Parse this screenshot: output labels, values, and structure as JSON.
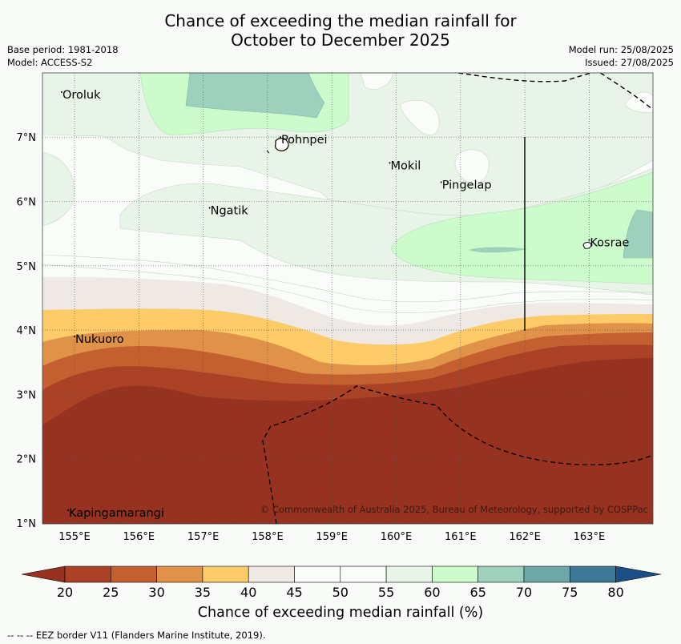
{
  "header": {
    "title_line1": "Chance of exceeding the median rainfall for",
    "title_line2": "October to December 2025",
    "base_period": "Base period: 1981-2018",
    "model": "Model: ACCESS-S2",
    "model_run": "Model run: 25/08/2025",
    "issued": "Issued: 27/08/2025"
  },
  "map": {
    "lon_ticks": [
      "155°E",
      "156°E",
      "157°E",
      "158°E",
      "159°E",
      "160°E",
      "161°E",
      "162°E",
      "163°E"
    ],
    "lat_ticks": [
      "1°N",
      "2°N",
      "3°N",
      "4°N",
      "5°N",
      "6°N",
      "7°N"
    ],
    "places": [
      {
        "name": "Oroluk",
        "lon": 154.8,
        "lat": 7.6
      },
      {
        "name": "Pohnpei",
        "lon": 158.2,
        "lat": 6.9
      },
      {
        "name": "Mokil",
        "lon": 159.9,
        "lat": 6.5
      },
      {
        "name": "Pingelap",
        "lon": 160.7,
        "lat": 6.2
      },
      {
        "name": "Ngatik",
        "lon": 157.1,
        "lat": 5.8
      },
      {
        "name": "Kosrae",
        "lon": 163.0,
        "lat": 5.3
      },
      {
        "name": "Nukuoro",
        "lon": 155.0,
        "lat": 3.8
      },
      {
        "name": "Kapingamarangi",
        "lon": 154.9,
        "lat": 1.1
      }
    ],
    "copyright": "© Commonwealth of Australia 2025, Bureau of Meteorology, supported by COSPPac"
  },
  "colorbar": {
    "ticks": [
      "20",
      "25",
      "30",
      "35",
      "40",
      "45",
      "50",
      "55",
      "60",
      "65",
      "70",
      "75",
      "80"
    ],
    "colors": [
      "#ab4226",
      "#c45f30",
      "#df9248",
      "#fdcb68",
      "#efe9e6",
      "#fafcfa",
      "#fafcfa",
      "#e9f4e9",
      "#ccfccc",
      "#9dd0bd",
      "#6ea7a8",
      "#3d7897"
    ],
    "under_color": "#983220",
    "over_color": "#1a4f87",
    "label": "Chance of exceeding median rainfall (%)"
  },
  "footnote": "--  --  -- EEZ border V11 (Flanders Marine Institute, 2019)."
}
